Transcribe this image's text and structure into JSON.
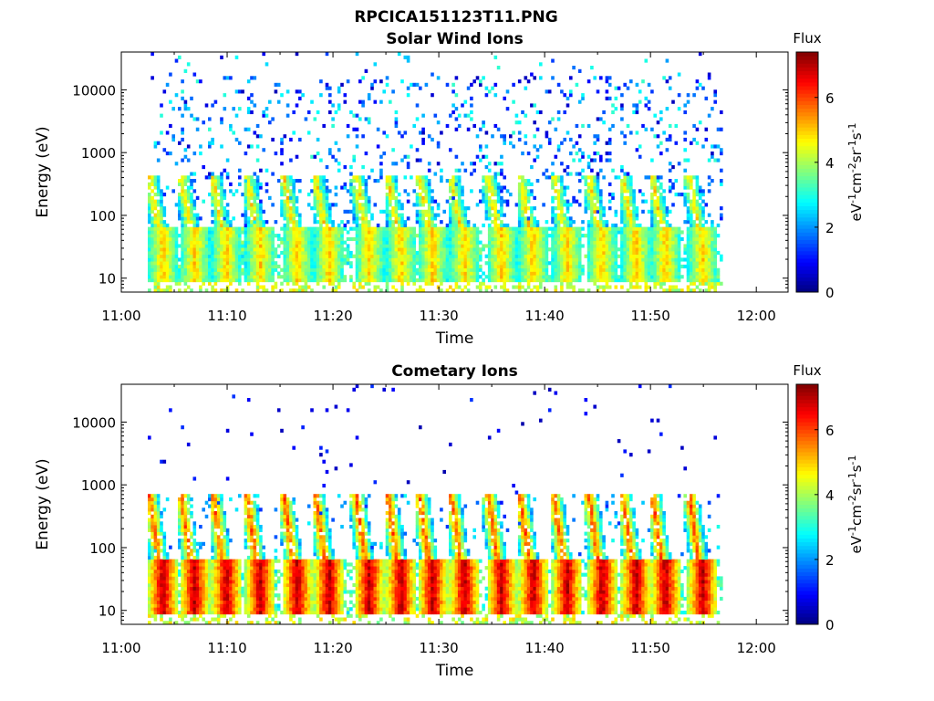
{
  "figure": {
    "title": "RPCICA151123T11.PNG"
  },
  "chart_data": [
    {
      "type": "heatmap",
      "title": "Solar Wind Ions",
      "xlabel": "Time",
      "ylabel": "Energy (eV)",
      "y_scale": "log",
      "xticks": [
        "11:00",
        "11:10",
        "11:20",
        "11:30",
        "11:40",
        "11:50",
        "12:00"
      ],
      "xtick_minutes": [
        0,
        10,
        20,
        30,
        40,
        50,
        60
      ],
      "xlim_minutes": [
        0,
        63
      ],
      "yticks": [
        10,
        100,
        1000,
        10000
      ],
      "ytick_labels": [
        "10",
        "100",
        "1000",
        "10000"
      ],
      "ylim": [
        6,
        40000
      ],
      "data_time_range_minutes": [
        2.5,
        56.8
      ],
      "burst_minutes": [
        3.8,
        6.8,
        9.8,
        13.0,
        16.5,
        19.5,
        23.3,
        26.3,
        29.3,
        32.3,
        35.8,
        38.8,
        42.0,
        45.3,
        48.5,
        51.3,
        54.8
      ],
      "colorbar": {
        "title": "Flux",
        "label": "eV-1cm-2sr-1s-1",
        "ticks": [
          "0",
          "2",
          "4",
          "6"
        ],
        "range": [
          0,
          7.4
        ]
      },
      "description": "Sparse low-flux background up to ~30000 eV; periodic bursts of yellow/orange flux (~4-5) concentrated around 20-50 eV"
    },
    {
      "type": "heatmap",
      "title": "Cometary Ions",
      "xlabel": "Time",
      "ylabel": "Energy (eV)",
      "y_scale": "log",
      "xticks": [
        "11:00",
        "11:10",
        "11:20",
        "11:30",
        "11:40",
        "11:50",
        "12:00"
      ],
      "xtick_minutes": [
        0,
        10,
        20,
        30,
        40,
        50,
        60
      ],
      "xlim_minutes": [
        0,
        63
      ],
      "yticks": [
        10,
        100,
        1000,
        10000
      ],
      "ytick_labels": [
        "10",
        "100",
        "1000",
        "10000"
      ],
      "ylim": [
        6,
        40000
      ],
      "data_time_range_minutes": [
        2.5,
        56.8
      ],
      "burst_minutes": [
        3.8,
        6.8,
        9.8,
        13.0,
        16.5,
        19.5,
        23.3,
        26.3,
        29.3,
        32.3,
        35.8,
        38.8,
        42.0,
        45.3,
        48.5,
        51.3,
        54.8
      ],
      "colorbar": {
        "title": "Flux",
        "label": "eV-1cm-2sr-1s-1",
        "ticks": [
          "0",
          "2",
          "4",
          "6"
        ],
        "range": [
          0,
          7.4
        ]
      },
      "description": "Strong periodic bursts with red/orange flux (~6-7) at 15-60 eV, streaking upward to ~500 eV; very sparse points above 1000 eV"
    }
  ]
}
